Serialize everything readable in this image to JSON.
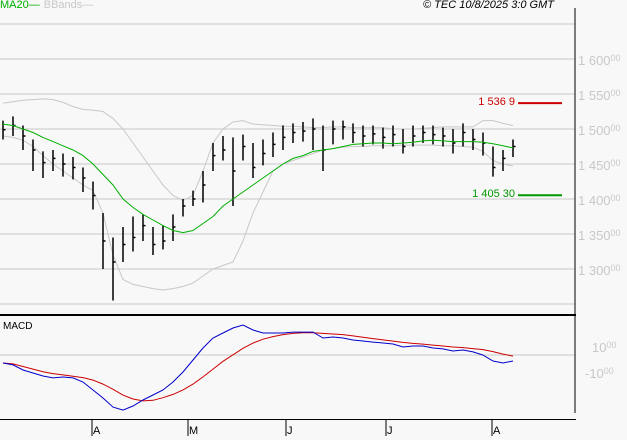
{
  "legend": {
    "ma_label": "MA20",
    "bb_label": "BBands"
  },
  "copyright": "© TEC 10/8/2025 3:0 GMT",
  "colors": {
    "ma": "#00b000",
    "bbands": "#c8c8c8",
    "bars": "#000000",
    "macd": "#0000cc",
    "signal": "#cc0000",
    "resistance": "#cc0000",
    "support": "#009900",
    "grid": "#c8c8c8"
  },
  "macd_panel": {
    "title": "MACD"
  },
  "chart_data": {
    "type": "ohlc-bar",
    "price_axis": {
      "range": [
        1255,
        1650
      ],
      "ticks": [
        1300,
        1350,
        1400,
        1450,
        1500,
        1550,
        1600
      ],
      "tick_labels": [
        [
          "1 300",
          "00"
        ],
        [
          "1 350",
          "00"
        ],
        [
          "1 400",
          "00"
        ],
        [
          "1 450",
          "00"
        ],
        [
          "1 500",
          "00"
        ],
        [
          "1 550",
          "00"
        ],
        [
          "1 600",
          "00"
        ]
      ]
    },
    "x_tick_labels": [
      "A",
      "M",
      "J",
      "J",
      "A"
    ],
    "grid": true,
    "close": [
      1499,
      1505,
      1490,
      1470,
      1452,
      1458,
      1450,
      1445,
      1430,
      1405,
      1340,
      1310,
      1335,
      1345,
      1362,
      1335,
      1340,
      1360,
      1390,
      1400,
      1420,
      1462,
      1470,
      1440,
      1475,
      1445,
      1465,
      1478,
      1488,
      1495,
      1497,
      1500,
      1470,
      1500,
      1503,
      1495,
      1490,
      1493,
      1488,
      1492,
      1475,
      1490,
      1495,
      1492,
      1490,
      1480,
      1495,
      1485,
      1480,
      1445,
      1458,
      1475
    ],
    "high": [
      1512,
      1518,
      1505,
      1485,
      1468,
      1470,
      1465,
      1460,
      1445,
      1425,
      1380,
      1345,
      1360,
      1375,
      1378,
      1360,
      1362,
      1378,
      1400,
      1412,
      1440,
      1480,
      1490,
      1488,
      1492,
      1480,
      1485,
      1495,
      1505,
      1508,
      1510,
      1515,
      1505,
      1512,
      1512,
      1508,
      1505,
      1505,
      1502,
      1505,
      1500,
      1505,
      1505,
      1505,
      1502,
      1500,
      1508,
      1500,
      1495,
      1475,
      1470,
      1485
    ],
    "low": [
      1485,
      1490,
      1470,
      1440,
      1430,
      1440,
      1432,
      1428,
      1410,
      1385,
      1300,
      1255,
      1310,
      1325,
      1340,
      1320,
      1328,
      1340,
      1375,
      1390,
      1395,
      1440,
      1455,
      1390,
      1455,
      1430,
      1448,
      1460,
      1470,
      1480,
      1482,
      1470,
      1440,
      1478,
      1485,
      1480,
      1475,
      1478,
      1472,
      1475,
      1465,
      1475,
      1480,
      1478,
      1475,
      1465,
      1475,
      1470,
      1462,
      1432,
      1440,
      1460
    ],
    "ma20": [
      1507,
      1505,
      1500,
      1495,
      1488,
      1482,
      1476,
      1470,
      1462,
      1450,
      1435,
      1420,
      1400,
      1388,
      1378,
      1370,
      1362,
      1355,
      1352,
      1355,
      1365,
      1375,
      1390,
      1400,
      1410,
      1420,
      1430,
      1440,
      1450,
      1458,
      1462,
      1468,
      1470,
      1472,
      1475,
      1478,
      1479,
      1480,
      1480,
      1479,
      1480,
      1481,
      1483,
      1484,
      1483,
      1482,
      1482,
      1482,
      1481,
      1479,
      1476,
      1473
    ],
    "bb_upper": [
      1537,
      1539,
      1541,
      1542,
      1543,
      1542,
      1538,
      1532,
      1528,
      1527,
      1525,
      1515,
      1500,
      1480,
      1460,
      1440,
      1420,
      1405,
      1398,
      1405,
      1440,
      1480,
      1500,
      1510,
      1512,
      1507,
      1506,
      1505,
      1504,
      1504,
      1503,
      1502,
      1502,
      1503,
      1503,
      1502,
      1502,
      1502,
      1502,
      1500,
      1500,
      1500,
      1501,
      1502,
      1503,
      1503,
      1503,
      1503,
      1512,
      1512,
      1508,
      1505
    ],
    "bb_lower": [
      1490,
      1488,
      1484,
      1475,
      1462,
      1450,
      1440,
      1430,
      1420,
      1412,
      1380,
      1320,
      1285,
      1278,
      1275,
      1272,
      1270,
      1272,
      1275,
      1280,
      1290,
      1300,
      1305,
      1310,
      1340,
      1380,
      1410,
      1440,
      1450,
      1455,
      1460,
      1465,
      1470,
      1472,
      1474,
      1475,
      1475,
      1476,
      1476,
      1476,
      1477,
      1477,
      1477,
      1477,
      1476,
      1476,
      1475,
      1474,
      1468,
      1455,
      1450,
      1447
    ],
    "levels": [
      {
        "value": 1536.9,
        "label": "1 536 9",
        "color": "#cc0000"
      },
      {
        "value": 1405.3,
        "label": "1 405 30",
        "color": "#009900"
      }
    ],
    "macd_axis": {
      "ticks": [
        1000,
        -1000
      ],
      "tick_labels": [
        [
          "1000",
          "00"
        ],
        [
          "-1000",
          "00"
        ]
      ]
    },
    "macd": [
      -230,
      -380,
      -770,
      -1000,
      -1230,
      -1380,
      -1310,
      -1380,
      -1690,
      -2310,
      -2920,
      -3620,
      -3850,
      -3540,
      -3080,
      -2690,
      -2310,
      -1690,
      -920,
      0,
      920,
      1690,
      2080,
      2460,
      2690,
      2310,
      2080,
      2080,
      2080,
      2150,
      2150,
      2150,
      1690,
      1770,
      1690,
      1540,
      1460,
      1380,
      1310,
      1230,
      1000,
      1080,
      1080,
      920,
      850,
      690,
      770,
      620,
      380,
      -80,
      -230,
      -80
    ],
    "signal": [
      -230,
      -300,
      -500,
      -700,
      -900,
      -1050,
      -1150,
      -1250,
      -1350,
      -1550,
      -1850,
      -2250,
      -2700,
      -3000,
      -3150,
      -3100,
      -2900,
      -2650,
      -2300,
      -1850,
      -1300,
      -700,
      -100,
      400,
      900,
      1300,
      1600,
      1800,
      1950,
      2050,
      2100,
      2100,
      2050,
      2000,
      1950,
      1850,
      1750,
      1650,
      1550,
      1450,
      1350,
      1280,
      1220,
      1150,
      1080,
      1000,
      950,
      880,
      800,
      650,
      450,
      300
    ]
  }
}
